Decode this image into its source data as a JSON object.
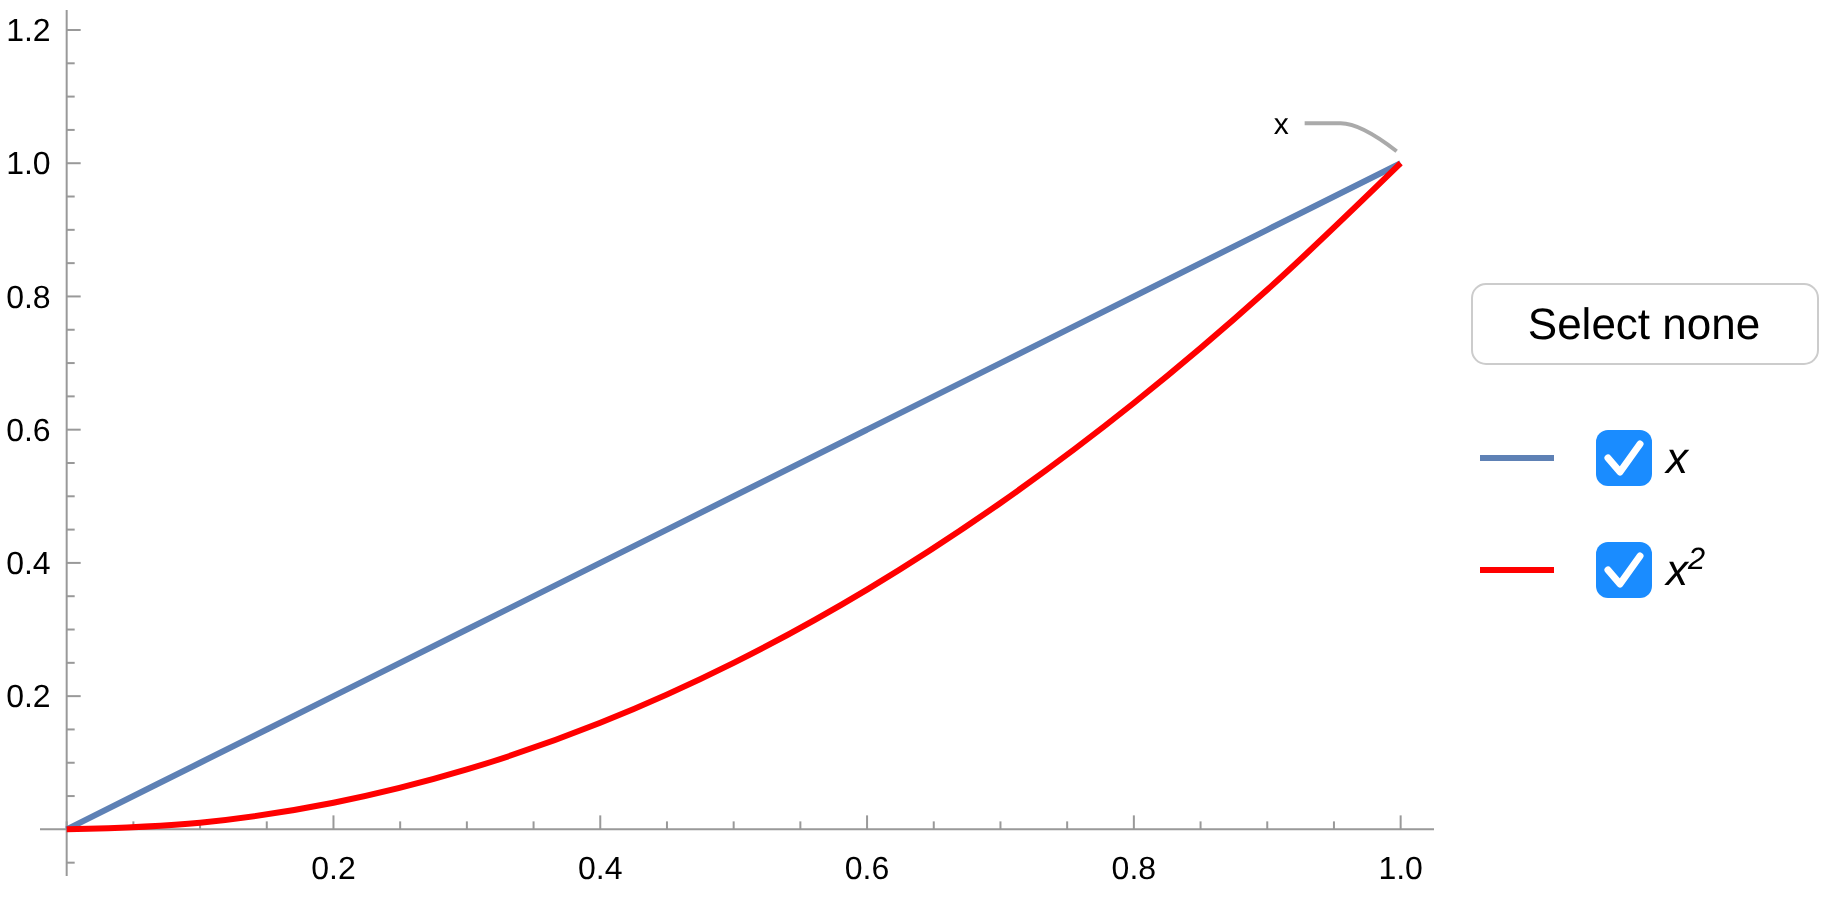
{
  "chart_data": {
    "type": "line",
    "x": [
      0,
      0.1,
      0.2,
      0.3,
      0.4,
      0.5,
      0.6,
      0.7,
      0.8,
      0.9,
      1.0
    ],
    "series": [
      {
        "name": "x",
        "color": "#5e81b5",
        "values": [
          0,
          0.1,
          0.2,
          0.3,
          0.4,
          0.5,
          0.6,
          0.7,
          0.8,
          0.9,
          1.0
        ]
      },
      {
        "name": "x$^{2}$",
        "color": "#ff0000",
        "values": [
          0,
          0.01,
          0.04,
          0.09,
          0.16,
          0.25,
          0.36,
          0.49,
          0.64,
          0.81,
          1.0
        ]
      }
    ],
    "xlim": [
      -0.02,
      1.025
    ],
    "ylim": [
      -0.07,
      1.23
    ],
    "xticks": [
      {
        "value": 0,
        "label": null
      },
      {
        "value": 0.05,
        "label": null
      },
      {
        "value": 0.1,
        "label": null
      },
      {
        "value": 0.15,
        "label": null
      },
      {
        "value": 0.2,
        "label": "0.2"
      },
      {
        "value": 0.25,
        "label": null
      },
      {
        "value": 0.3,
        "label": null
      },
      {
        "value": 0.35,
        "label": null
      },
      {
        "value": 0.4,
        "label": "0.4"
      },
      {
        "value": 0.45,
        "label": null
      },
      {
        "value": 0.5,
        "label": null
      },
      {
        "value": 0.55,
        "label": null
      },
      {
        "value": 0.6,
        "label": "0.6"
      },
      {
        "value": 0.65,
        "label": null
      },
      {
        "value": 0.7,
        "label": null
      },
      {
        "value": 0.75,
        "label": null
      },
      {
        "value": 0.8,
        "label": "0.8"
      },
      {
        "value": 0.85,
        "label": null
      },
      {
        "value": 0.9,
        "label": null
      },
      {
        "value": 0.95,
        "label": null
      },
      {
        "value": 1.0,
        "label": "1.0"
      }
    ],
    "yticks": [
      {
        "value": -0.05,
        "label": null
      },
      {
        "value": 0.05,
        "label": null
      },
      {
        "value": 0.1,
        "label": null
      },
      {
        "value": 0.15,
        "label": null
      },
      {
        "value": 0.2,
        "label": "0.2"
      },
      {
        "value": 0.25,
        "label": null
      },
      {
        "value": 0.3,
        "label": null
      },
      {
        "value": 0.35,
        "label": null
      },
      {
        "value": 0.4,
        "label": "0.4"
      },
      {
        "value": 0.45,
        "label": null
      },
      {
        "value": 0.5,
        "label": null
      },
      {
        "value": 0.55,
        "label": null
      },
      {
        "value": 0.6,
        "label": "0.6"
      },
      {
        "value": 0.65,
        "label": null
      },
      {
        "value": 0.7,
        "label": null
      },
      {
        "value": 0.75,
        "label": null
      },
      {
        "value": 0.8,
        "label": "0.8"
      },
      {
        "value": 0.85,
        "label": null
      },
      {
        "value": 0.9,
        "label": null
      },
      {
        "value": 0.95,
        "label": null
      },
      {
        "value": 1.0,
        "label": "1.0"
      },
      {
        "value": 1.05,
        "label": null
      },
      {
        "value": 1.1,
        "label": null
      },
      {
        "value": 1.15,
        "label": null
      },
      {
        "value": 1.2,
        "label": "1.2"
      }
    ],
    "annotations": [
      {
        "text": "x",
        "x": 1.0,
        "y": 1.0
      },
      "Select none"
    ],
    "legend": "right",
    "marker": "none",
    "line_style": "solid"
  }
}
